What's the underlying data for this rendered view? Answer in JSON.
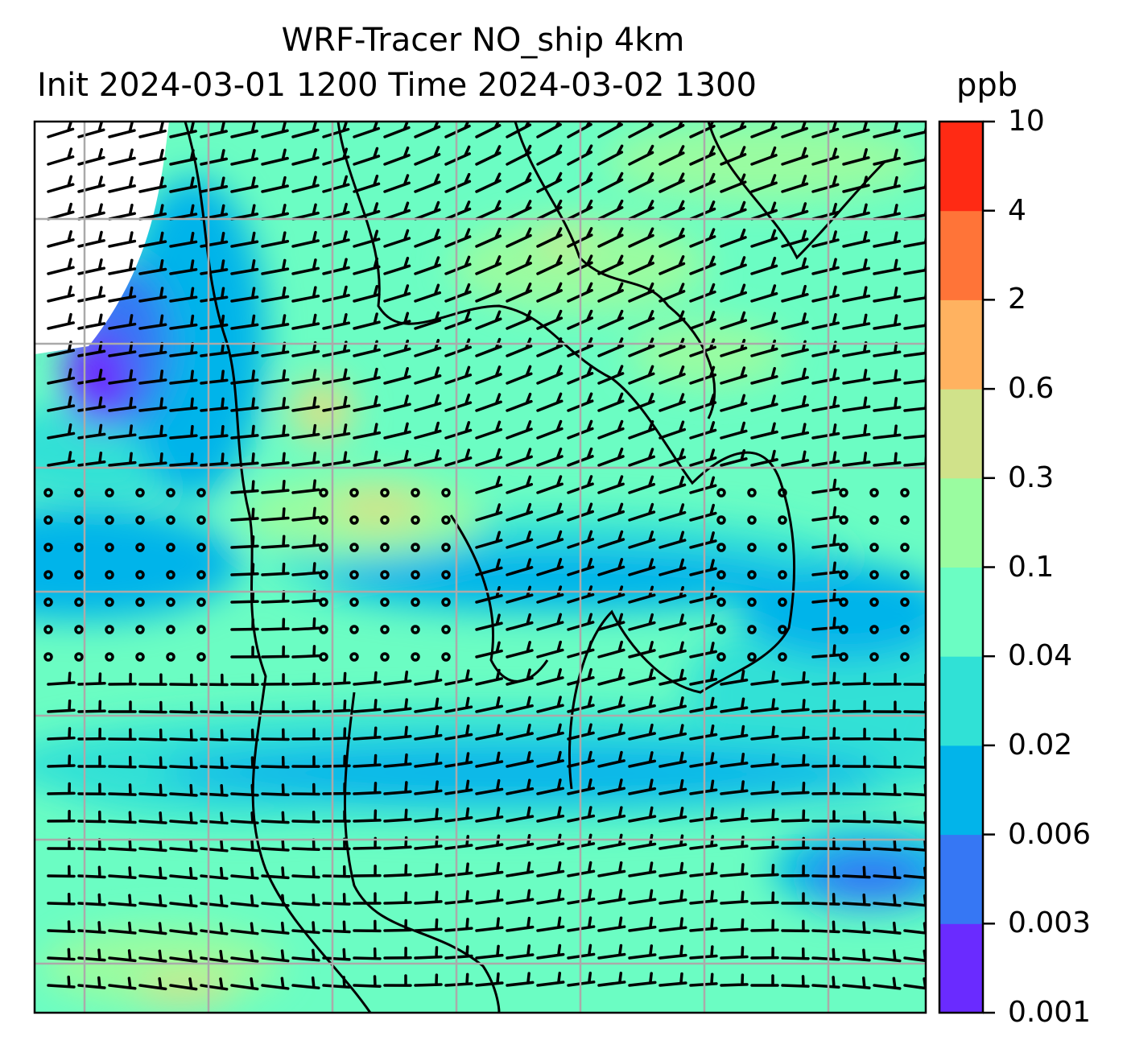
{
  "chart_data": {
    "type": "heatmap",
    "subtype": "filled-contour map with wind barbs",
    "title_line1": "WRF-Tracer NO_ship 4km",
    "title_line2": "Init 2024-03-01 1200 Time 2024-03-02 1300",
    "units": "ppb",
    "colorbar": {
      "ticks": [
        "0.001",
        "0.003",
        "0.006",
        "0.02",
        "0.04",
        "0.1",
        "0.3",
        "0.6",
        "2",
        "4",
        "10"
      ],
      "colors": [
        "#6a2bff",
        "#3677f4",
        "#02b4ea",
        "#30e1d6",
        "#6bfdc3",
        "#9afca0",
        "#d0e28a",
        "#ffb260",
        "#ff7438",
        "#ff2a14"
      ]
    },
    "grid": true,
    "overlay": "wind barbs and coastlines",
    "background_color": "#6bfdc3"
  }
}
